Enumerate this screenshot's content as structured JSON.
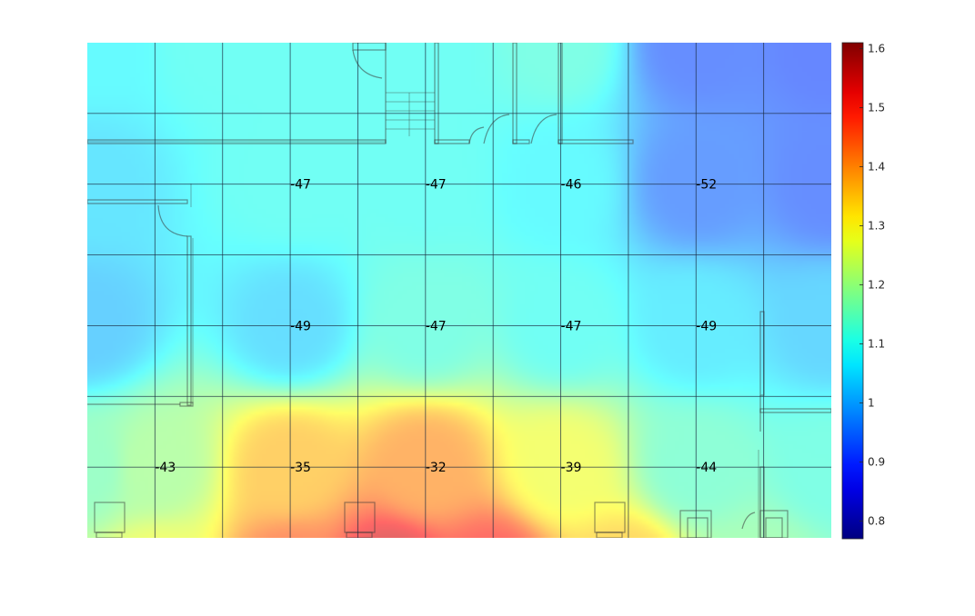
{
  "chart_data": {
    "type": "heatmap",
    "title": "",
    "xlabel": "",
    "ylabel": "",
    "grid": true,
    "grid_columns": 11,
    "grid_rows": 7,
    "colormap": "jet",
    "colorbar": {
      "min": 0.77,
      "max": 1.61,
      "ticks": [
        "0.8",
        "0.9",
        "1",
        "1.1",
        "1.2",
        "1.3",
        "1.4",
        "1.5",
        "1.6"
      ],
      "tick_values": [
        0.8,
        0.9,
        1.0,
        1.1,
        1.2,
        1.3,
        1.4,
        1.5,
        1.6
      ]
    },
    "measurements": [
      {
        "col": 3,
        "row": 2,
        "label": "-47",
        "value": 1.1
      },
      {
        "col": 5,
        "row": 2,
        "label": "-47",
        "value": 1.1
      },
      {
        "col": 7,
        "row": 2,
        "label": "-46",
        "value": 1.08
      },
      {
        "col": 9,
        "row": 2,
        "label": "-52",
        "value": 0.95
      },
      {
        "col": 3,
        "row": 4,
        "label": "-49",
        "value": 1.04
      },
      {
        "col": 5,
        "row": 4,
        "label": "-47",
        "value": 1.12
      },
      {
        "col": 7,
        "row": 4,
        "label": "-47",
        "value": 1.1
      },
      {
        "col": 9,
        "row": 4,
        "label": "-49",
        "value": 1.06
      },
      {
        "col": 1,
        "row": 6,
        "label": "-43",
        "value": 1.2
      },
      {
        "col": 3,
        "row": 6,
        "label": "-35",
        "value": 1.36
      },
      {
        "col": 5,
        "row": 6,
        "label": "-32",
        "value": 1.4
      },
      {
        "col": 7,
        "row": 6,
        "label": "-39",
        "value": 1.28
      },
      {
        "col": 9,
        "row": 6,
        "label": "-44",
        "value": 1.14
      }
    ],
    "field_anchors": [
      {
        "col": 0,
        "row": 0,
        "value": 1.08
      },
      {
        "col": 2,
        "row": 0,
        "value": 1.1
      },
      {
        "col": 5,
        "row": 0,
        "value": 1.1
      },
      {
        "col": 7,
        "row": 0,
        "value": 1.12
      },
      {
        "col": 9,
        "row": 0,
        "value": 0.93
      },
      {
        "col": 11,
        "row": 0,
        "value": 0.92
      },
      {
        "col": 11,
        "row": 2,
        "value": 0.93
      },
      {
        "col": 0,
        "row": 2,
        "value": 1.05
      },
      {
        "col": 0,
        "row": 4,
        "value": 1.02
      },
      {
        "col": 11,
        "row": 4,
        "value": 1.03
      },
      {
        "col": 11,
        "row": 6,
        "value": 1.12
      },
      {
        "col": 0,
        "row": 6,
        "value": 1.16
      },
      {
        "col": 4.5,
        "row": 7.5,
        "value": 1.55
      },
      {
        "col": 6,
        "row": 7.5,
        "value": 1.5
      },
      {
        "col": 3,
        "row": 7.5,
        "value": 1.45
      },
      {
        "col": 1,
        "row": 7.5,
        "value": 1.28
      },
      {
        "col": 8,
        "row": 7.5,
        "value": 1.35
      },
      {
        "col": 10,
        "row": 7.5,
        "value": 1.18
      }
    ]
  }
}
